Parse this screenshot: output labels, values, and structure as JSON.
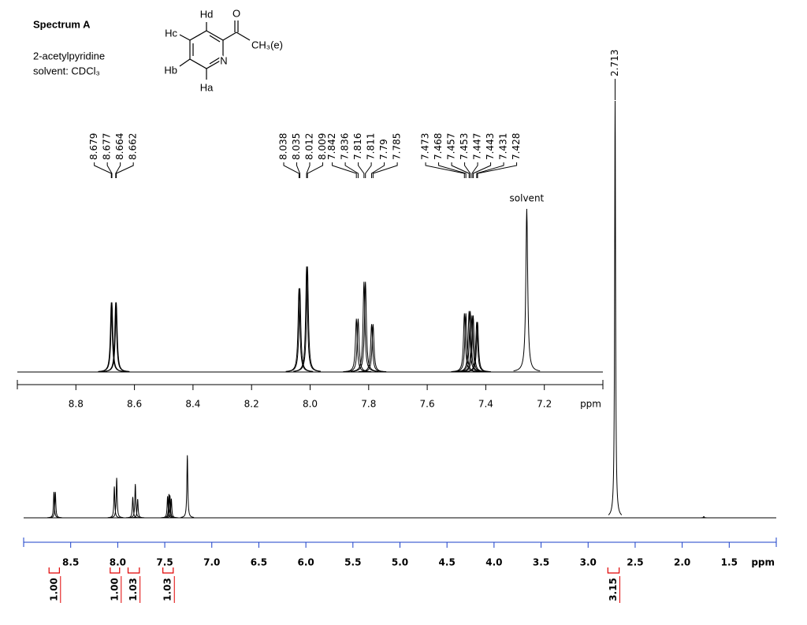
{
  "header": {
    "title": "Spectrum A",
    "compound": "2-acetylpyridine",
    "solvent": "solvent: CDCl₃"
  },
  "structure": {
    "atoms": [
      "Hd",
      "O",
      "Hc",
      "CH₃(e)",
      "Hb",
      "N",
      "Ha"
    ]
  },
  "chart_data": [
    {
      "type": "nmr",
      "x_label": "ppm",
      "xlim": [
        9.0,
        7.0
      ],
      "xticks": [
        8.8,
        8.6,
        8.4,
        8.2,
        {
          "value": 8,
          "label": "8.0"
        },
        7.8,
        7.6,
        7.4,
        7.2
      ],
      "x": [
        8.679,
        8.677,
        8.664,
        8.662,
        8.038,
        8.035,
        8.012,
        8.009,
        7.842,
        7.836,
        7.816,
        7.811,
        7.79,
        7.785,
        7.473,
        7.468,
        7.457,
        7.453,
        7.447,
        7.443,
        7.431,
        7.428,
        7.26
      ],
      "values": [
        6.4,
        6.4,
        6.4,
        6.4,
        7.7,
        7.7,
        9.7,
        9.7,
        4.9,
        4.9,
        8.3,
        8.3,
        4.4,
        4.4,
        5.4,
        5.4,
        5.6,
        5.6,
        5.2,
        5.2,
        4.6,
        4.6,
        15
      ],
      "labeled": [
        true,
        true,
        true,
        true,
        true,
        true,
        true,
        true,
        true,
        true,
        true,
        true,
        true,
        true,
        true,
        true,
        true,
        true,
        true,
        true,
        true,
        true,
        false
      ],
      "annotations": [
        {
          "text": "solvent",
          "x": 7.26
        }
      ],
      "color": "#000000"
    },
    {
      "type": "nmr",
      "x_label": "ppm",
      "xlim": [
        9.0,
        1.0
      ],
      "xticks": [
        8.5,
        {
          "value": 8,
          "label": "8.0"
        },
        7.5,
        {
          "value": 7,
          "label": "7.0"
        },
        6.5,
        {
          "value": 6,
          "label": "6.0"
        },
        5.5,
        {
          "value": 5,
          "label": "5.0"
        },
        4.5,
        {
          "value": 4,
          "label": "4.0"
        },
        3.5,
        {
          "value": 3,
          "label": "3.0"
        },
        2.5,
        {
          "value": 2,
          "label": "2.0"
        },
        1.5
      ],
      "tick_color": "#1a3fc8",
      "x": [
        8.678,
        8.663,
        8.036,
        8.011,
        7.84,
        7.813,
        7.788,
        7.47,
        7.455,
        7.445,
        7.43,
        7.26,
        2.713,
        1.77
      ],
      "values": [
        6.2,
        6.2,
        7.5,
        9.6,
        5,
        8.1,
        4.5,
        5.2,
        5.7,
        5.4,
        4.6,
        15,
        100,
        0.3
      ],
      "labeled": [
        false,
        false,
        false,
        false,
        false,
        false,
        false,
        false,
        false,
        false,
        false,
        false,
        true,
        false
      ],
      "color": "#000000",
      "integrals": {
        "ranges": [
          [
            8.73,
            8.62
          ],
          [
            8.08,
            7.98
          ],
          [
            7.89,
            7.77
          ],
          [
            7.52,
            7.41
          ],
          [
            2.79,
            2.67
          ]
        ],
        "values": [
          1,
          1,
          1.03,
          1.03,
          3.15
        ],
        "value_labels": [
          "1.00",
          "1.00",
          "1.03",
          "1.03",
          "3.15"
        ],
        "color": "#e00000"
      }
    }
  ]
}
